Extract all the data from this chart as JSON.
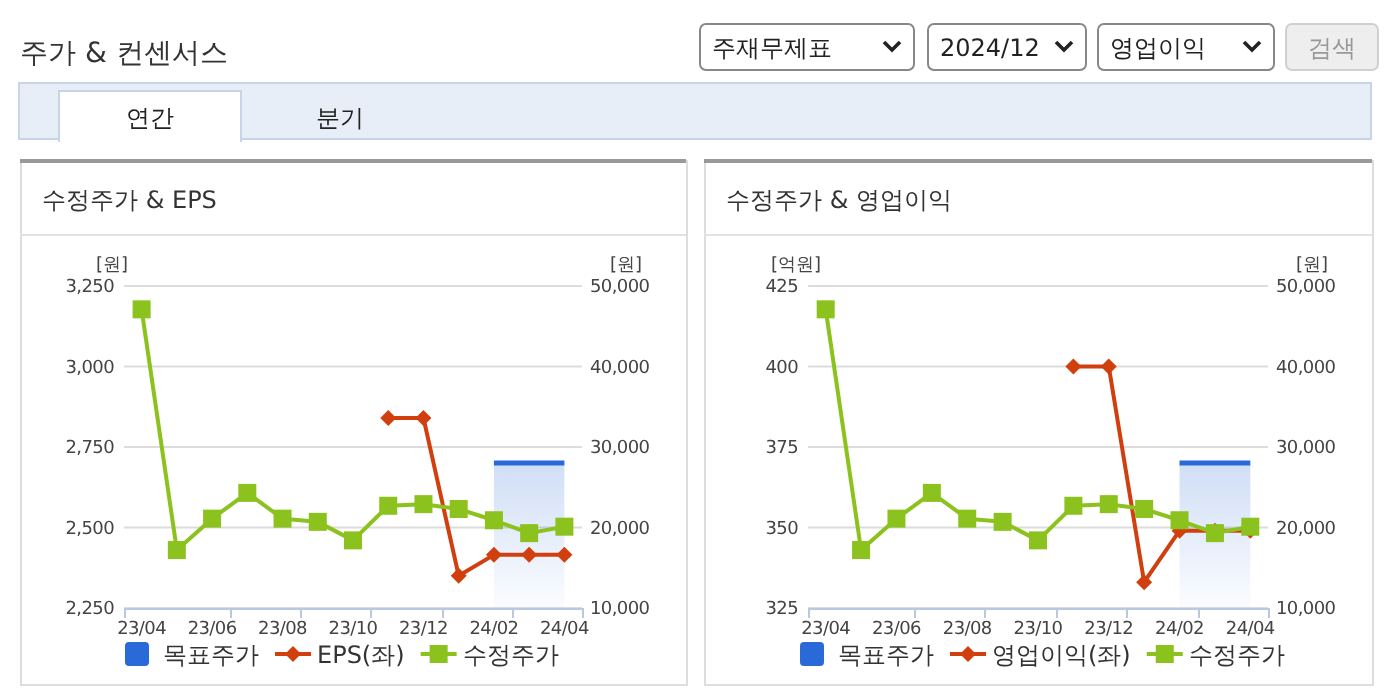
{
  "chart_data": [
    {
      "type": "other",
      "title": "주가 & 컨센서스",
      "annotations": [
        "주재무제표",
        "2024/12",
        "영업이익",
        "검색",
        "연간",
        "분기"
      ]
    },
    {
      "type": "line",
      "title": "수정주가 & EPS",
      "ylabel": "[원]",
      "y2label": "[원]",
      "categories": [
        "23/04",
        null,
        "23/06",
        null,
        "23/08",
        null,
        "23/10",
        null,
        "23/12",
        null,
        "24/02",
        null,
        "24/04"
      ],
      "ylim": [
        2250,
        3250
      ],
      "yticks": [
        {
          "value": 2250,
          "label": "2,250"
        },
        {
          "value": 2500,
          "label": "2,500"
        },
        {
          "value": 2750,
          "label": "2,750"
        },
        {
          "value": 3000,
          "label": "3,000"
        },
        {
          "value": 3250,
          "label": "3,250"
        }
      ],
      "y2lim": [
        10000,
        50000
      ],
      "y2ticks": [
        {
          "value": 10000,
          "label": "10,000"
        },
        {
          "value": 20000,
          "label": "20,000"
        },
        {
          "value": 30000,
          "label": "30,000"
        },
        {
          "value": 40000,
          "label": "40,000"
        },
        {
          "value": 50000,
          "label": "50,000"
        }
      ],
      "grid": "y",
      "legend": "bottom",
      "series": [
        {
          "name": "목표주가",
          "type": "area",
          "axis": "y2",
          "color": "#2a6ad8",
          "marker": "none",
          "values": [
            null,
            null,
            null,
            null,
            null,
            null,
            null,
            null,
            null,
            null,
            28000,
            28000,
            28000
          ]
        },
        {
          "name": "EPS(좌)",
          "type": "line",
          "color": "#d23f0e",
          "marker": "diamond",
          "values": [
            null,
            null,
            null,
            null,
            null,
            null,
            null,
            2840,
            2840,
            2350,
            2415,
            2415,
            2415
          ]
        },
        {
          "name": "수정주가",
          "type": "line",
          "axis": "y2",
          "color": "#8cc21d",
          "marker": "square",
          "values": [
            47100,
            17200,
            21100,
            24300,
            21100,
            20700,
            18400,
            22700,
            22900,
            22300,
            20900,
            19300,
            20100
          ]
        }
      ]
    },
    {
      "type": "line",
      "title": "수정주가 & 영업이익",
      "ylabel": "[억원]",
      "y2label": "[원]",
      "categories": [
        "23/04",
        null,
        "23/06",
        null,
        "23/08",
        null,
        "23/10",
        null,
        "23/12",
        null,
        "24/02",
        null,
        "24/04"
      ],
      "ylim": [
        325,
        425
      ],
      "yticks": [
        325,
        350,
        375,
        400,
        425
      ],
      "y2lim": [
        10000,
        50000
      ],
      "y2ticks": [
        {
          "value": 10000,
          "label": "10,000"
        },
        {
          "value": 20000,
          "label": "20,000"
        },
        {
          "value": 30000,
          "label": "30,000"
        },
        {
          "value": 40000,
          "label": "40,000"
        },
        {
          "value": 50000,
          "label": "50,000"
        }
      ],
      "grid": "y",
      "legend": "bottom",
      "series": [
        {
          "name": "목표주가",
          "type": "area",
          "axis": "y2",
          "color": "#2a6ad8",
          "marker": "none",
          "values": [
            null,
            null,
            null,
            null,
            null,
            null,
            null,
            null,
            null,
            null,
            28000,
            28000,
            28000
          ]
        },
        {
          "name": "영업이익(좌)",
          "type": "line",
          "color": "#d23f0e",
          "marker": "diamond",
          "values": [
            null,
            null,
            null,
            null,
            null,
            null,
            null,
            400,
            400,
            333,
            349,
            349,
            349
          ]
        },
        {
          "name": "수정주가",
          "type": "line",
          "axis": "y2",
          "color": "#8cc21d",
          "marker": "square",
          "values": [
            47100,
            17200,
            21100,
            24300,
            21100,
            20700,
            18400,
            22700,
            22900,
            22300,
            20900,
            19300,
            20100
          ]
        }
      ]
    }
  ]
}
